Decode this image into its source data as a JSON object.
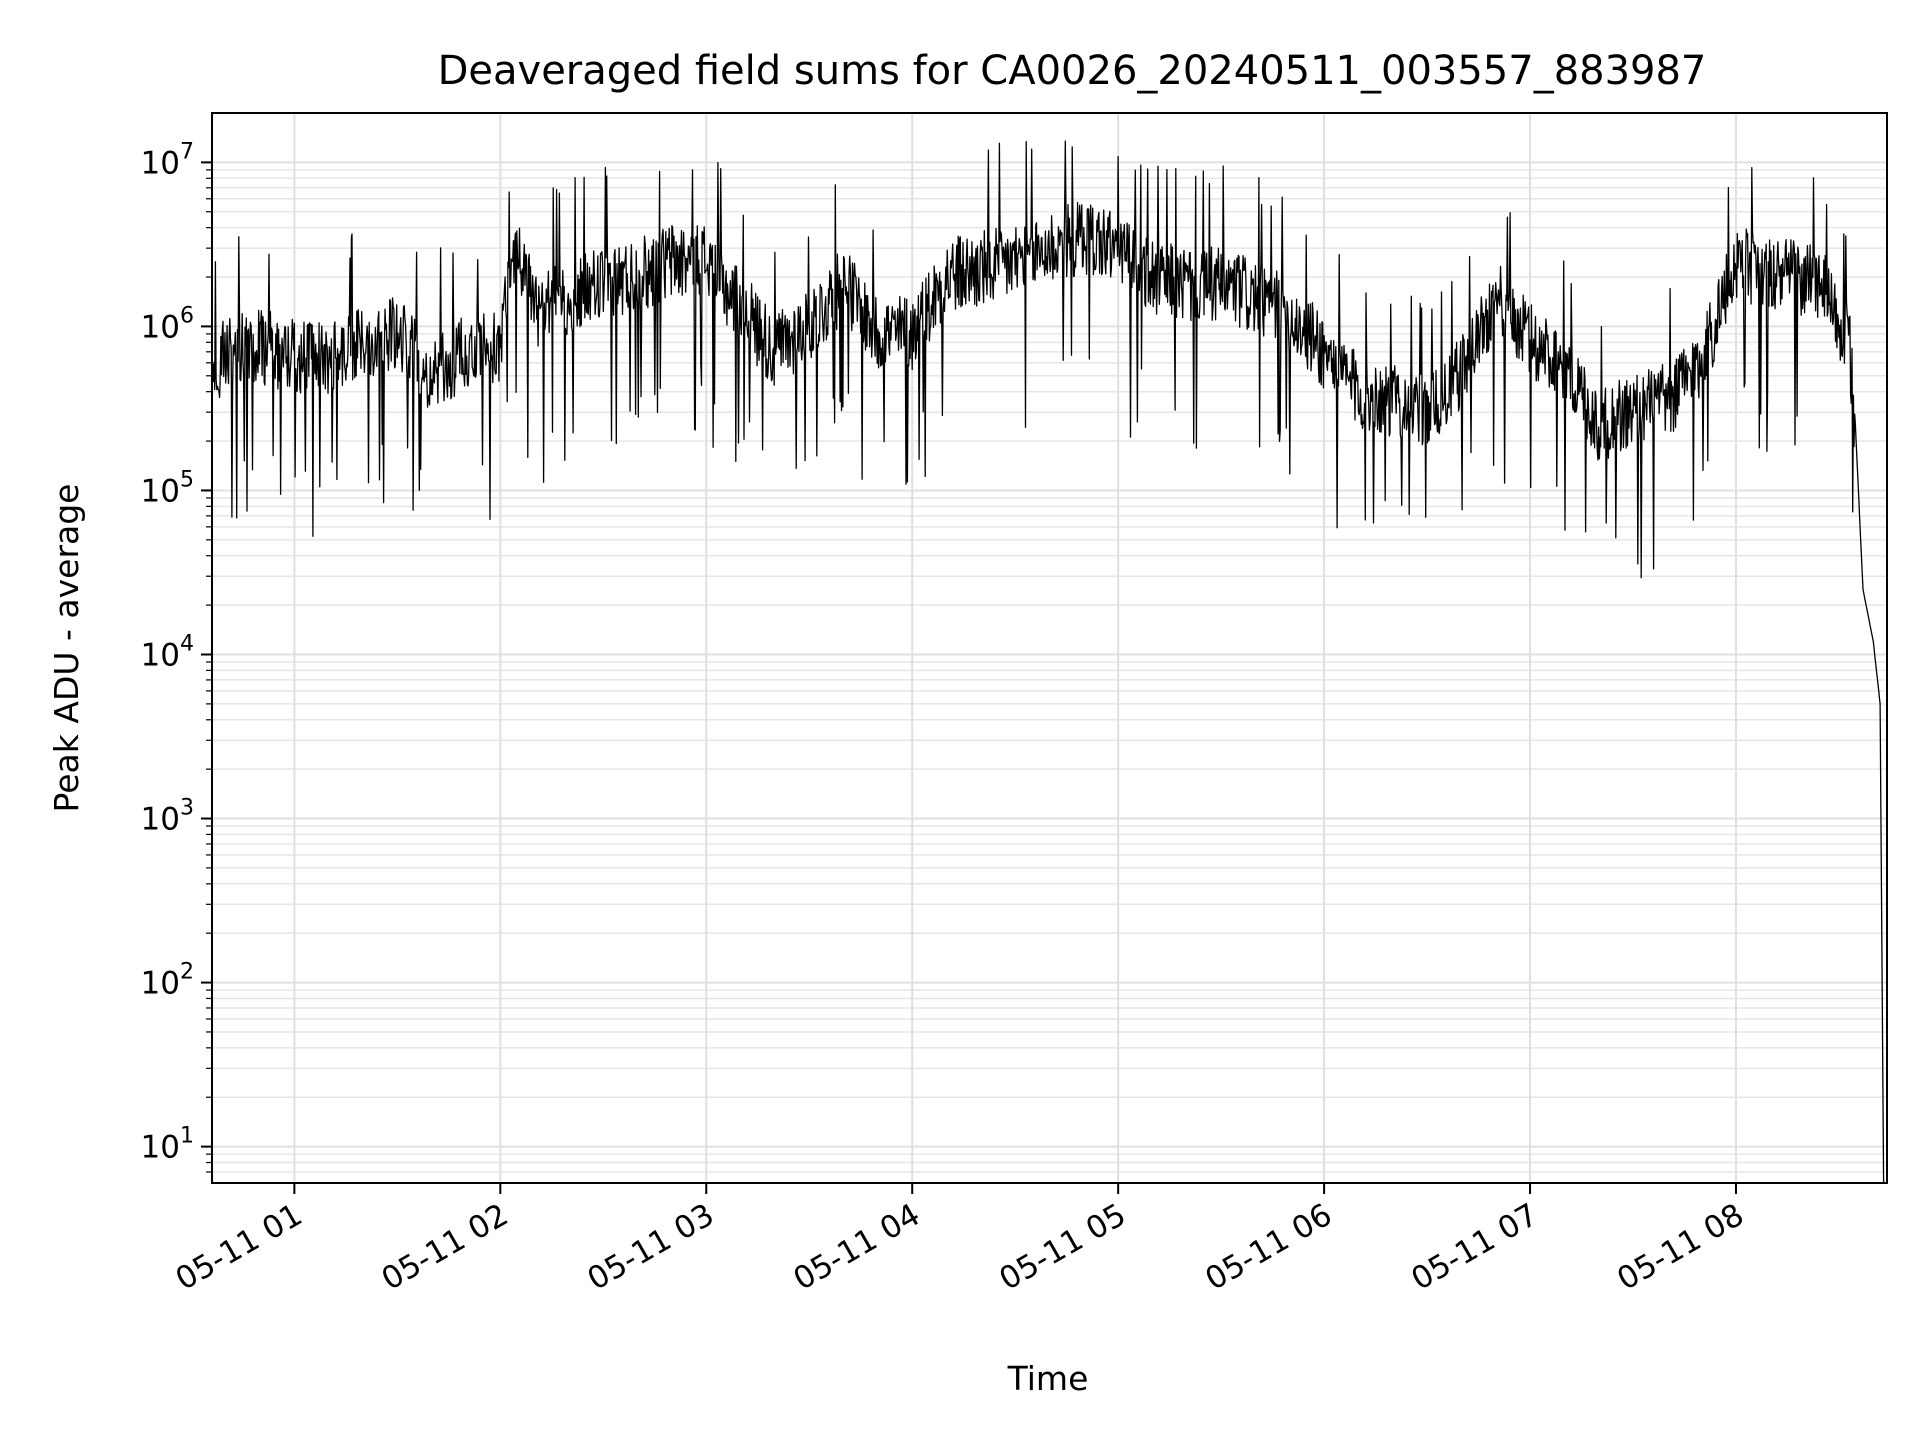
{
  "chart_data": {
    "type": "line",
    "title": "Deaveraged field sums for CA0026_20240511_003557_883987",
    "xlabel": "Time",
    "ylabel": "Peak ADU - average",
    "yscale": "log",
    "grid": true,
    "xlim": [
      "05-11 00:36",
      "05-11 08:44"
    ],
    "ylim": [
      6,
      20000000
    ],
    "x_ticks": [
      "05-11 01",
      "05-11 02",
      "05-11 03",
      "05-11 04",
      "05-11 05",
      "05-11 06",
      "05-11 07",
      "05-11 08"
    ],
    "y_ticks": [
      {
        "base": "10",
        "exp": "1"
      },
      {
        "base": "10",
        "exp": "2"
      },
      {
        "base": "10",
        "exp": "3"
      },
      {
        "base": "10",
        "exp": "4"
      },
      {
        "base": "10",
        "exp": "5"
      },
      {
        "base": "10",
        "exp": "6"
      },
      {
        "base": "10",
        "exp": "7"
      }
    ],
    "series": [
      {
        "color": "#000000",
        "x": [
          "00:36",
          "00:40",
          "00:50",
          "01:00",
          "01:10",
          "01:20",
          "01:30",
          "01:40",
          "01:50",
          "02:00",
          "02:04",
          "02:06",
          "02:10",
          "02:20",
          "02:30",
          "02:40",
          "02:50",
          "03:00",
          "03:10",
          "03:20",
          "03:30",
          "03:40",
          "03:50",
          "04:00",
          "04:10",
          "04:20",
          "04:30",
          "04:40",
          "04:50",
          "05:00",
          "05:10",
          "05:20",
          "05:30",
          "05:40",
          "05:50",
          "06:00",
          "06:10",
          "06:20",
          "06:30",
          "06:40",
          "06:50",
          "07:00",
          "07:10",
          "07:20",
          "07:30",
          "07:40",
          "07:50",
          "08:00",
          "08:10",
          "08:15",
          "08:25",
          "08:30",
          "08:33",
          "08:35",
          "08:37",
          "08:40",
          "08:42",
          "08:43"
        ],
        "y": [
          450000,
          700000,
          750000,
          650000,
          600000,
          800000,
          900000,
          500000,
          700000,
          750000,
          3000000,
          2500000,
          1200000,
          1500000,
          1800000,
          2000000,
          2500000,
          2500000,
          1300000,
          700000,
          1000000,
          1800000,
          900000,
          900000,
          2000000,
          2200000,
          2500000,
          3000000,
          3500000,
          3000000,
          2000000,
          1800000,
          1800000,
          1500000,
          1200000,
          700000,
          400000,
          350000,
          300000,
          500000,
          1500000,
          800000,
          600000,
          250000,
          300000,
          350000,
          600000,
          2500000,
          2000000,
          2000000,
          1800000,
          1000000,
          800000,
          200000,
          25000,
          12000,
          5000,
          6
        ]
      }
    ]
  }
}
